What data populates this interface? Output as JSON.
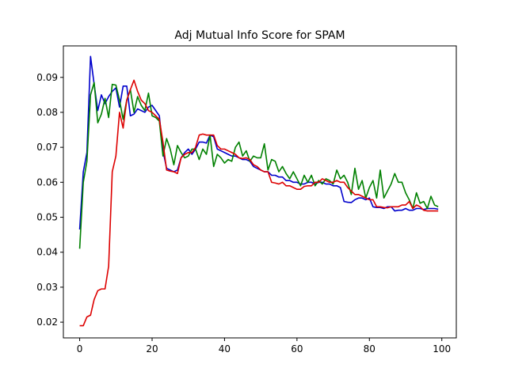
{
  "chart_data": {
    "type": "line",
    "title": "Adj Mutual Info Score for SPAM",
    "xlabel": "",
    "ylabel": "",
    "xlim": [
      -4.5,
      104
    ],
    "ylim": [
      0.0155,
      0.099
    ],
    "xticks": [
      0,
      20,
      40,
      60,
      80,
      100
    ],
    "yticks": [
      0.02,
      0.03,
      0.04,
      0.05,
      0.06,
      0.07,
      0.08,
      0.09
    ],
    "ytick_labels": [
      "0.02",
      "0.03",
      "0.04",
      "0.05",
      "0.06",
      "0.07",
      "0.08",
      "0.09"
    ],
    "grid": false,
    "legend": "none",
    "x": [
      0,
      1,
      2,
      3,
      4,
      5,
      6,
      7,
      8,
      9,
      10,
      11,
      12,
      13,
      14,
      15,
      16,
      17,
      18,
      19,
      20,
      21,
      22,
      23,
      24,
      25,
      26,
      27,
      28,
      29,
      30,
      31,
      32,
      33,
      34,
      35,
      36,
      37,
      38,
      39,
      40,
      41,
      42,
      43,
      44,
      45,
      46,
      47,
      48,
      49,
      50,
      51,
      52,
      53,
      54,
      55,
      56,
      57,
      58,
      59,
      60,
      61,
      62,
      63,
      64,
      65,
      66,
      67,
      68,
      69,
      70,
      71,
      72,
      73,
      74,
      75,
      76,
      77,
      78,
      79,
      80,
      81,
      82,
      83,
      84,
      85,
      86,
      87,
      88,
      89,
      90,
      91,
      92,
      93,
      94,
      95,
      96,
      97,
      98,
      99
    ],
    "series": [
      {
        "color": "#0000cc",
        "values": [
          0.0465,
          0.063,
          0.0685,
          0.096,
          0.088,
          0.0805,
          0.085,
          0.0825,
          0.0845,
          0.086,
          0.087,
          0.0815,
          0.0875,
          0.0875,
          0.079,
          0.0795,
          0.081,
          0.0805,
          0.08,
          0.0815,
          0.082,
          0.0805,
          0.079,
          0.069,
          0.064,
          0.0635,
          0.063,
          0.0635,
          0.067,
          0.0685,
          0.0695,
          0.068,
          0.0695,
          0.0715,
          0.0715,
          0.0712,
          0.0735,
          0.073,
          0.0695,
          0.069,
          0.0685,
          0.068,
          0.0675,
          0.0675,
          0.067,
          0.0665,
          0.0665,
          0.066,
          0.0645,
          0.064,
          0.0635,
          0.063,
          0.063,
          0.062,
          0.062,
          0.0615,
          0.0615,
          0.0605,
          0.0605,
          0.06,
          0.06,
          0.0595,
          0.0595,
          0.06,
          0.06,
          0.0595,
          0.06,
          0.06,
          0.0595,
          0.0595,
          0.059,
          0.059,
          0.0585,
          0.0545,
          0.0543,
          0.0542,
          0.055,
          0.0555,
          0.0555,
          0.055,
          0.0555,
          0.053,
          0.0528,
          0.0528,
          0.0525,
          0.053,
          0.053,
          0.0518,
          0.052,
          0.052,
          0.0525,
          0.052,
          0.052,
          0.0525,
          0.0525,
          0.0522,
          0.0525,
          0.0525,
          0.0525,
          0.0523
        ]
      },
      {
        "color": "#008000",
        "values": [
          0.041,
          0.06,
          0.066,
          0.085,
          0.0885,
          0.077,
          0.0795,
          0.084,
          0.0785,
          0.088,
          0.0878,
          0.0835,
          0.078,
          0.0835,
          0.0865,
          0.08,
          0.0845,
          0.082,
          0.0805,
          0.0855,
          0.079,
          0.0785,
          0.0775,
          0.0675,
          0.0725,
          0.0695,
          0.065,
          0.0705,
          0.0685,
          0.067,
          0.0675,
          0.0695,
          0.0695,
          0.0665,
          0.0695,
          0.068,
          0.0735,
          0.0645,
          0.068,
          0.067,
          0.0655,
          0.0665,
          0.066,
          0.07,
          0.0715,
          0.0675,
          0.069,
          0.066,
          0.0675,
          0.067,
          0.067,
          0.071,
          0.0635,
          0.0665,
          0.066,
          0.063,
          0.0645,
          0.0625,
          0.061,
          0.063,
          0.061,
          0.059,
          0.062,
          0.06,
          0.062,
          0.059,
          0.0605,
          0.0595,
          0.061,
          0.0605,
          0.0595,
          0.0635,
          0.061,
          0.062,
          0.06,
          0.0565,
          0.064,
          0.058,
          0.0605,
          0.0555,
          0.0585,
          0.0605,
          0.0555,
          0.0635,
          0.0555,
          0.0575,
          0.0595,
          0.0625,
          0.06,
          0.06,
          0.057,
          0.055,
          0.0525,
          0.057,
          0.054,
          0.0545,
          0.0525,
          0.056,
          0.0535,
          0.053
        ]
      },
      {
        "color": "#dd0000",
        "values": [
          0.019,
          0.019,
          0.0215,
          0.022,
          0.0265,
          0.029,
          0.0295,
          0.0295,
          0.036,
          0.063,
          0.0675,
          0.08,
          0.0755,
          0.0835,
          0.0865,
          0.0892,
          0.086,
          0.0835,
          0.0825,
          0.0805,
          0.08,
          0.079,
          0.078,
          0.0715,
          0.0635,
          0.0632,
          0.063,
          0.0625,
          0.067,
          0.068,
          0.0685,
          0.0685,
          0.07,
          0.0735,
          0.0738,
          0.0735,
          0.0735,
          0.0735,
          0.0705,
          0.0695,
          0.0695,
          0.069,
          0.0685,
          0.068,
          0.067,
          0.0668,
          0.067,
          0.0665,
          0.065,
          0.0645,
          0.0635,
          0.063,
          0.063,
          0.06,
          0.0598,
          0.0595,
          0.06,
          0.059,
          0.059,
          0.0585,
          0.058,
          0.058,
          0.0588,
          0.059,
          0.059,
          0.06,
          0.06,
          0.061,
          0.0605,
          0.06,
          0.06,
          0.0605,
          0.06,
          0.06,
          0.0585,
          0.0575,
          0.0565,
          0.0565,
          0.056,
          0.0555,
          0.055,
          0.055,
          0.053,
          0.053,
          0.0528,
          0.0527,
          0.053,
          0.053,
          0.053,
          0.0535,
          0.0535,
          0.0545,
          0.0525,
          0.0535,
          0.053,
          0.052,
          0.0518,
          0.0518,
          0.0518,
          0.0518
        ]
      }
    ]
  }
}
